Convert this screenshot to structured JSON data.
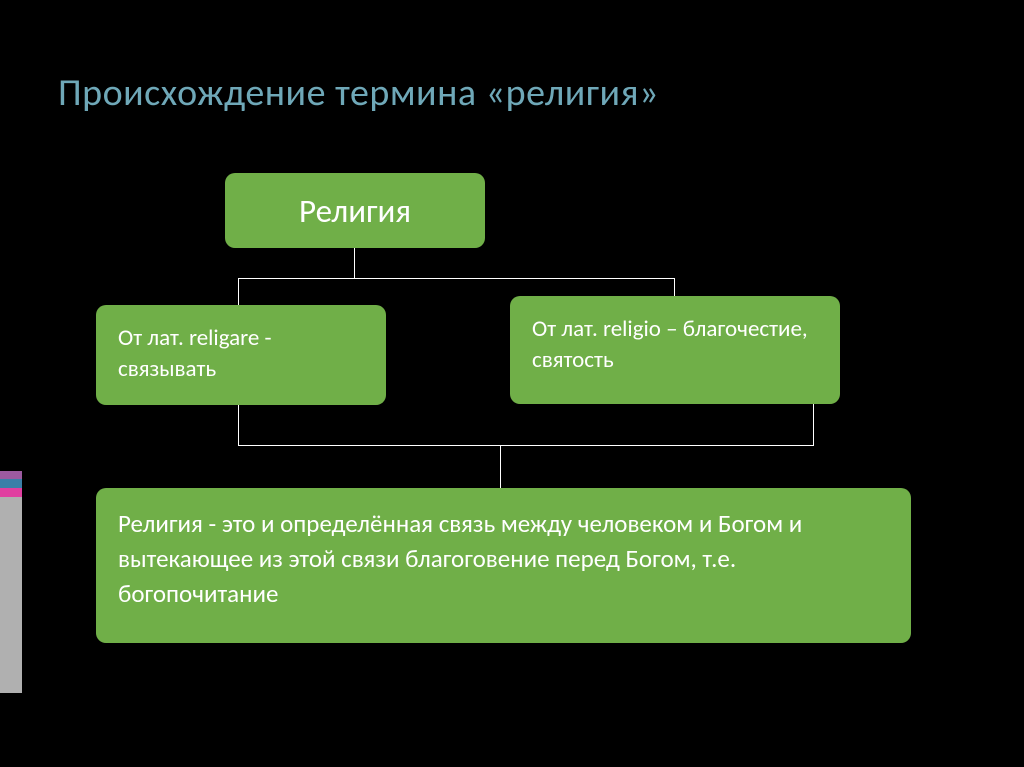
{
  "title": "Происхождение  термина «религия»",
  "diagram": {
    "type": "tree",
    "box_color": "#70af48",
    "text_color": "#ffffff",
    "connector_color": "#ffffff",
    "background_color": "#000000",
    "title_color": "#6fa8b8",
    "title_fontsize": 38,
    "top": {
      "text": "Религия",
      "fontsize": 33
    },
    "left": {
      "text": "От лат. religare - связывать",
      "fontsize": 23
    },
    "right": {
      "text": "От лат. religio – благочестие, святость",
      "fontsize": 23
    },
    "bottom": {
      "text": "Религия - это и  определённая связь между человеком и Богом и вытекающее из этой связи благоговение перед Богом, т.е. богопочитание",
      "fontsize": 25
    }
  },
  "sidebar": {
    "segments": [
      {
        "color": "#9c5aa0",
        "height": 8
      },
      {
        "color": "#3a7fa8",
        "height": 9
      },
      {
        "color": "#e03fa0",
        "height": 9
      },
      {
        "color": "#b0b0b0",
        "height": 196
      }
    ]
  }
}
